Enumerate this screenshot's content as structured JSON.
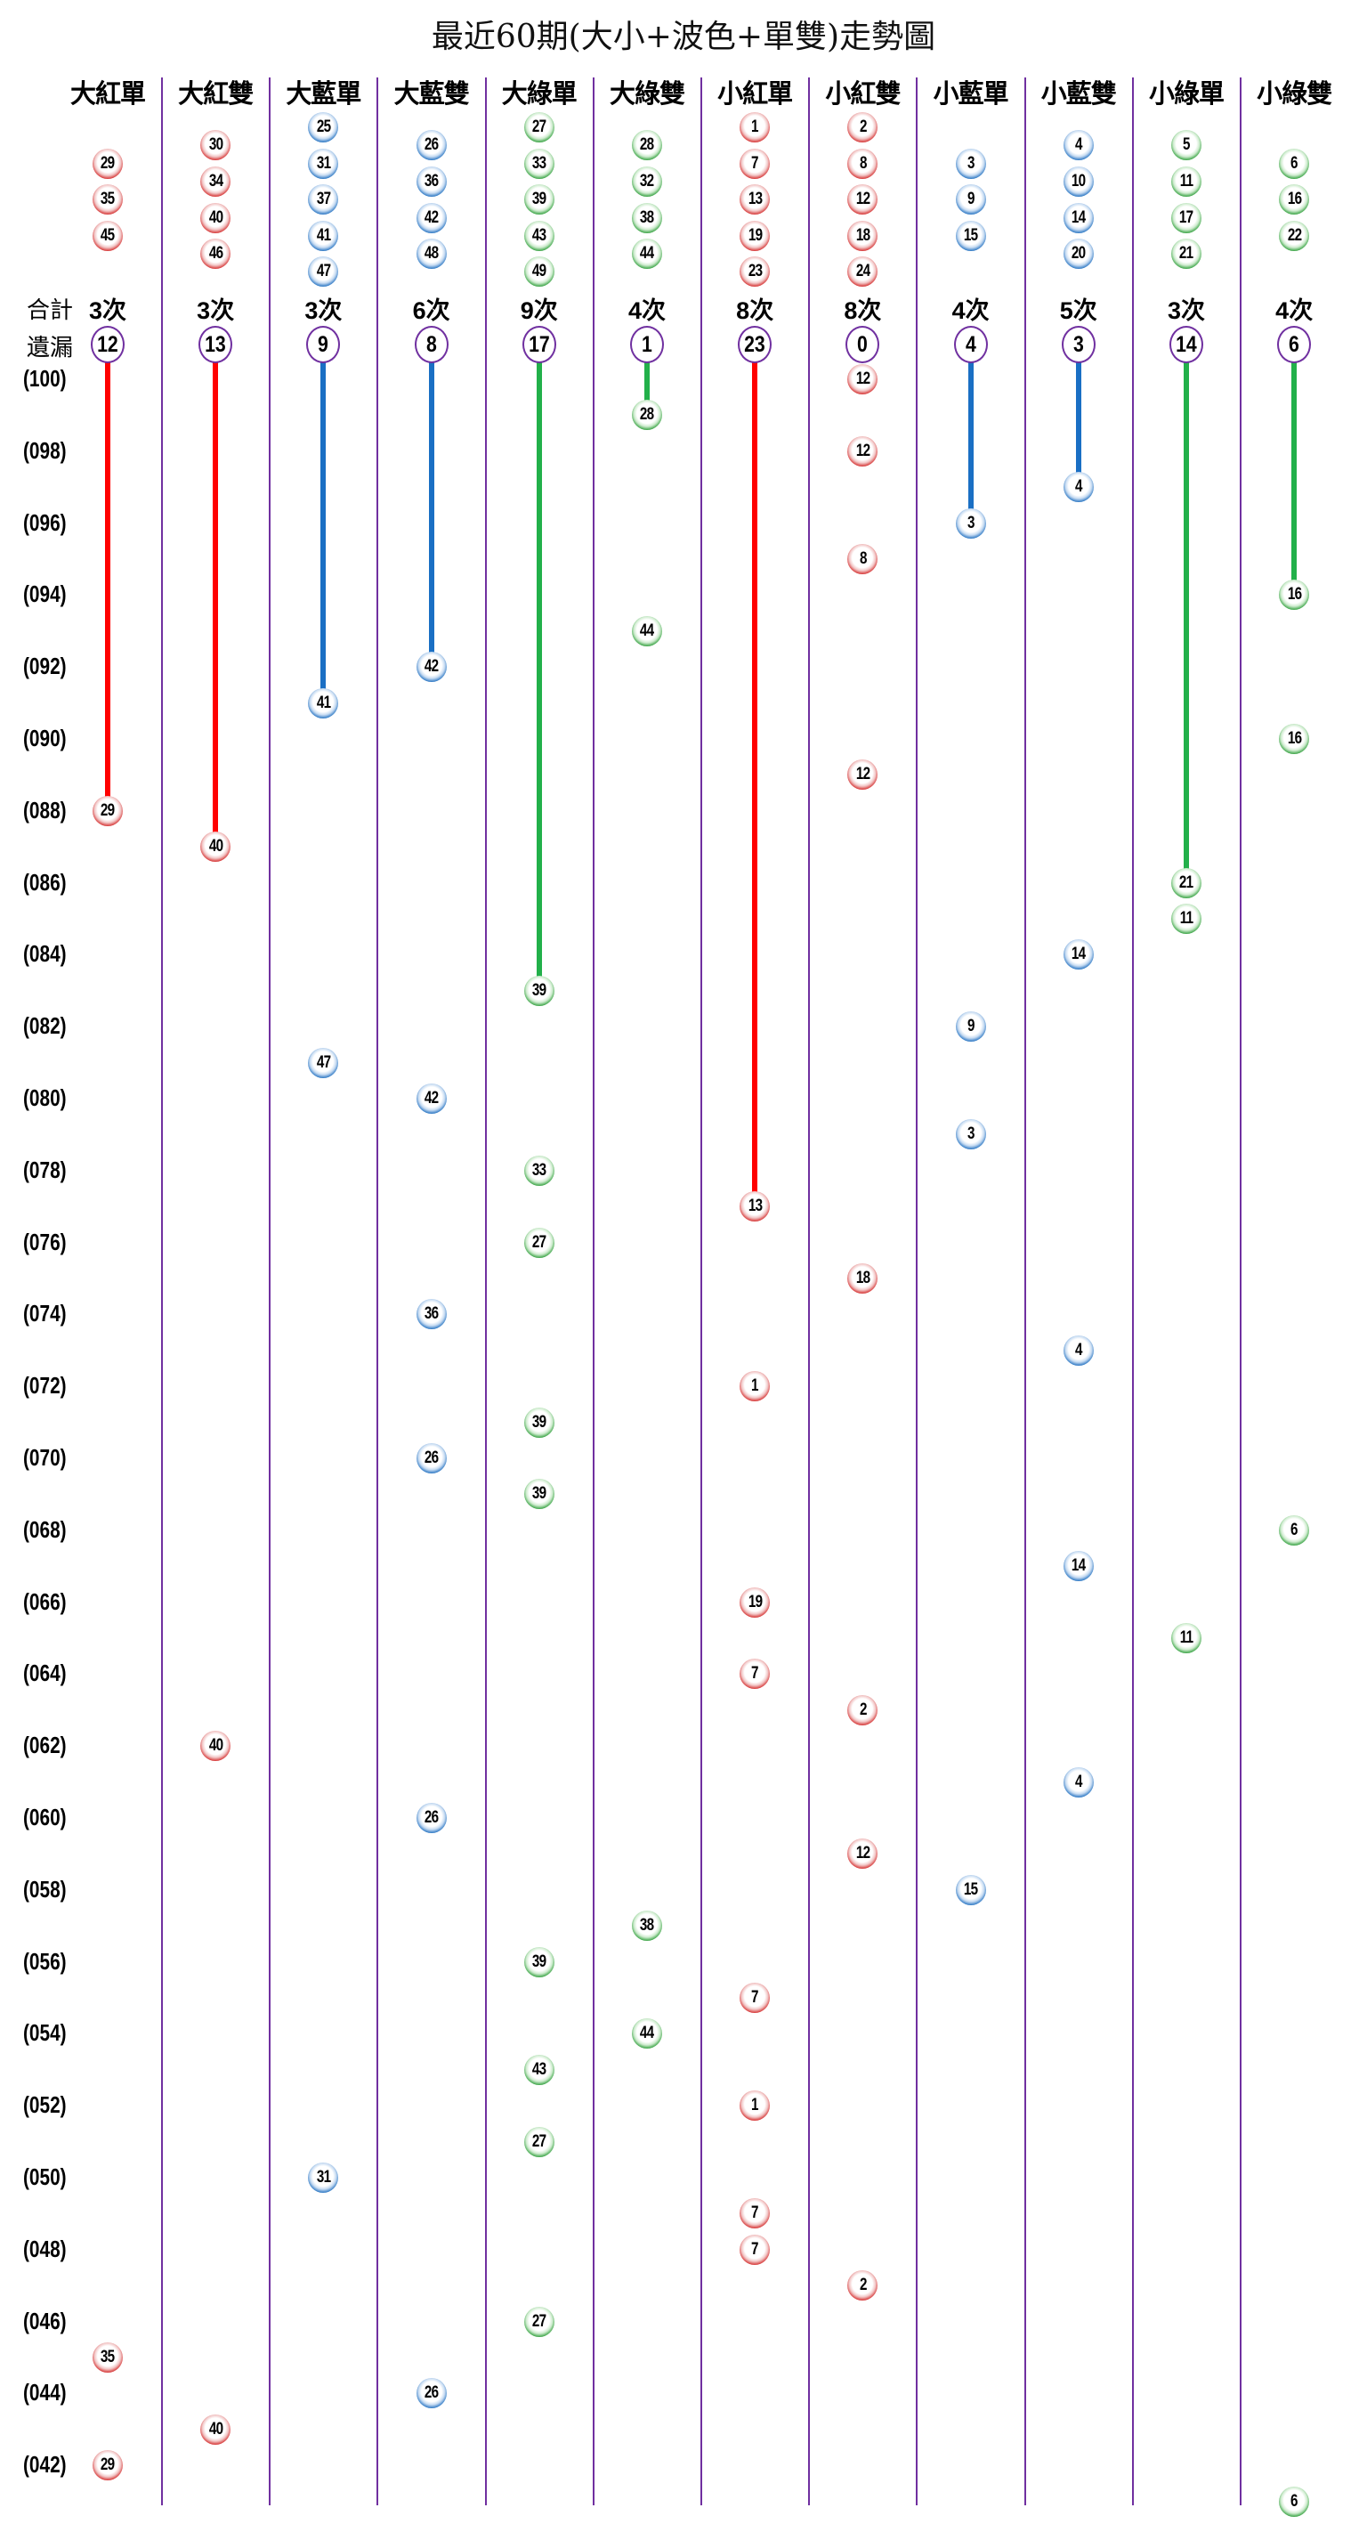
{
  "chart_data": {
    "type": "table",
    "title": "最近60期(大小+波色+單雙)走勢圖",
    "total_label": "合計",
    "missing_label": "遺漏",
    "colors": {
      "red": "#d42a2a",
      "blue": "#1f6fc0",
      "green": "#2e9e3a",
      "divider": "#7030a0",
      "line_red": "#ff0000",
      "line_blue": "#1a6fc4",
      "line_green": "#22b04a"
    },
    "columns": [
      {
        "label": "大紅單",
        "color": "red",
        "numbers": [
          29,
          35,
          45
        ],
        "total": "3次",
        "missing": 12,
        "draws": [
          {
            "period": 88,
            "n": 29
          },
          {
            "period": 45,
            "n": 35
          },
          {
            "period": 42,
            "n": 29
          }
        ]
      },
      {
        "label": "大紅雙",
        "color": "red",
        "numbers": [
          30,
          34,
          40,
          46
        ],
        "total": "3次",
        "missing": 13,
        "draws": [
          {
            "period": 87,
            "n": 40
          },
          {
            "period": 62,
            "n": 40
          },
          {
            "period": 43,
            "n": 40
          }
        ]
      },
      {
        "label": "大藍單",
        "color": "blue",
        "numbers": [
          25,
          31,
          37,
          41,
          47
        ],
        "total": "3次",
        "missing": 9,
        "draws": [
          {
            "period": 91,
            "n": 41
          },
          {
            "period": 81,
            "n": 47
          },
          {
            "period": 50,
            "n": 31
          }
        ]
      },
      {
        "label": "大藍雙",
        "color": "blue",
        "numbers": [
          26,
          36,
          42,
          48
        ],
        "total": "6次",
        "missing": 8,
        "draws": [
          {
            "period": 92,
            "n": 42
          },
          {
            "period": 80,
            "n": 42
          },
          {
            "period": 74,
            "n": 36
          },
          {
            "period": 70,
            "n": 26
          },
          {
            "period": 60,
            "n": 26
          },
          {
            "period": 44,
            "n": 26
          }
        ]
      },
      {
        "label": "大綠單",
        "color": "green",
        "numbers": [
          27,
          33,
          39,
          43,
          49
        ],
        "total": "9次",
        "missing": 17,
        "draws": [
          {
            "period": 83,
            "n": 39
          },
          {
            "period": 78,
            "n": 33
          },
          {
            "period": 76,
            "n": 27
          },
          {
            "period": 71,
            "n": 39
          },
          {
            "period": 69,
            "n": 39
          },
          {
            "period": 56,
            "n": 39
          },
          {
            "period": 53,
            "n": 43
          },
          {
            "period": 51,
            "n": 27
          },
          {
            "period": 46,
            "n": 27
          }
        ]
      },
      {
        "label": "大綠雙",
        "color": "green",
        "numbers": [
          28,
          32,
          38,
          44
        ],
        "total": "4次",
        "missing": 1,
        "draws": [
          {
            "period": 99,
            "n": 28
          },
          {
            "period": 93,
            "n": 44
          },
          {
            "period": 57,
            "n": 38
          },
          {
            "period": 54,
            "n": 44
          }
        ]
      },
      {
        "label": "小紅單",
        "color": "red",
        "numbers": [
          1,
          7,
          13,
          19,
          23
        ],
        "total": "8次",
        "missing": 23,
        "draws": [
          {
            "period": 77,
            "n": 13
          },
          {
            "period": 72,
            "n": 1
          },
          {
            "period": 66,
            "n": 19
          },
          {
            "period": 64,
            "n": 7
          },
          {
            "period": 55,
            "n": 7
          },
          {
            "period": 52,
            "n": 1
          },
          {
            "period": 49,
            "n": 7
          },
          {
            "period": 48,
            "n": 7
          }
        ]
      },
      {
        "label": "小紅雙",
        "color": "red",
        "numbers": [
          2,
          8,
          12,
          18,
          24
        ],
        "total": "8次",
        "missing": 0,
        "draws": [
          {
            "period": 100,
            "n": 12
          },
          {
            "period": 98,
            "n": 12
          },
          {
            "period": 95,
            "n": 8
          },
          {
            "period": 89,
            "n": 12
          },
          {
            "period": 75,
            "n": 18
          },
          {
            "period": 63,
            "n": 2
          },
          {
            "period": 59,
            "n": 12
          },
          {
            "period": 47,
            "n": 2
          }
        ]
      },
      {
        "label": "小藍單",
        "color": "blue",
        "numbers": [
          3,
          9,
          15
        ],
        "total": "4次",
        "missing": 4,
        "draws": [
          {
            "period": 96,
            "n": 3
          },
          {
            "period": 82,
            "n": 9
          },
          {
            "period": 79,
            "n": 3
          },
          {
            "period": 58,
            "n": 15
          }
        ]
      },
      {
        "label": "小藍雙",
        "color": "blue",
        "numbers": [
          4,
          10,
          14,
          20
        ],
        "total": "5次",
        "missing": 3,
        "draws": [
          {
            "period": 97,
            "n": 4
          },
          {
            "period": 84,
            "n": 14
          },
          {
            "period": 73,
            "n": 4
          },
          {
            "period": 67,
            "n": 14
          },
          {
            "period": 61,
            "n": 4
          }
        ]
      },
      {
        "label": "小綠單",
        "color": "green",
        "numbers": [
          5,
          11,
          17,
          21
        ],
        "total": "3次",
        "missing": 14,
        "draws": [
          {
            "period": 86,
            "n": 21
          },
          {
            "period": 85,
            "n": 11
          },
          {
            "period": 65,
            "n": 11
          }
        ]
      },
      {
        "label": "小綠雙",
        "color": "green",
        "numbers": [
          6,
          16,
          22
        ],
        "total": "4次",
        "missing": 6,
        "draws": [
          {
            "period": 94,
            "n": 16
          },
          {
            "period": 90,
            "n": 16
          },
          {
            "period": 68,
            "n": 6
          },
          {
            "period": 41,
            "n": 6
          }
        ]
      }
    ],
    "period_labels": [
      "(100)",
      "(098)",
      "(096)",
      "(094)",
      "(092)",
      "(090)",
      "(088)",
      "(086)",
      "(084)",
      "(082)",
      "(080)",
      "(078)",
      "(076)",
      "(074)",
      "(072)",
      "(070)",
      "(068)",
      "(066)",
      "(064)",
      "(062)",
      "(060)",
      "(058)",
      "(056)",
      "(054)",
      "(052)",
      "(050)",
      "(048)",
      "(046)",
      "(044)",
      "(042)"
    ]
  }
}
